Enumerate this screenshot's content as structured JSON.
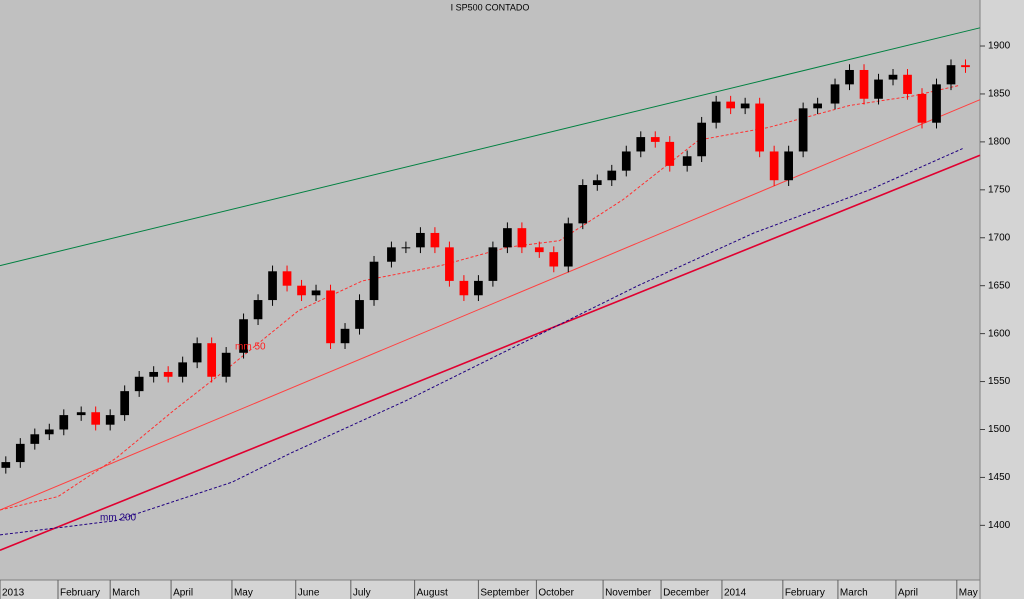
{
  "chart_data": {
    "type": "candlestick",
    "title": "I SP500 CONTADO",
    "x": [
      2,
      7,
      12,
      17,
      22,
      28,
      33,
      38,
      43,
      48,
      53,
      58,
      63,
      68,
      73,
      78,
      84,
      89,
      94,
      99,
      104,
      109,
      114,
      119,
      124,
      129,
      135,
      140,
      145,
      150,
      155,
      160,
      165,
      170,
      175,
      180,
      186,
      191,
      196,
      201,
      206,
      211,
      216,
      221,
      226,
      231,
      237,
      242,
      247,
      252,
      257,
      262,
      267,
      272,
      277,
      282,
      288,
      293,
      298,
      303,
      308,
      313,
      318,
      323,
      328,
      333
    ],
    "open": [
      1460,
      1466,
      1485,
      1495,
      1500,
      1515,
      1518,
      1505,
      1515,
      1540,
      1555,
      1560,
      1555,
      1570,
      1590,
      1555,
      1580,
      1615,
      1635,
      1665,
      1650,
      1640,
      1645,
      1590,
      1605,
      1635,
      1675,
      1690,
      1690,
      1705,
      1690,
      1655,
      1640,
      1655,
      1690,
      1710,
      1690,
      1685,
      1670,
      1715,
      1755,
      1760,
      1770,
      1790,
      1805,
      1800,
      1775,
      1785,
      1820,
      1842,
      1835,
      1840,
      1790,
      1760,
      1790,
      1835,
      1840,
      1860,
      1875,
      1845,
      1865,
      1870,
      1850,
      1820,
      1860,
      1880
    ],
    "high": [
      1472,
      1491,
      1501,
      1506,
      1521,
      1524,
      1524,
      1521,
      1546,
      1561,
      1566,
      1566,
      1576,
      1596,
      1596,
      1586,
      1621,
      1641,
      1671,
      1671,
      1656,
      1651,
      1651,
      1611,
      1641,
      1681,
      1696,
      1696,
      1711,
      1711,
      1696,
      1661,
      1661,
      1696,
      1716,
      1716,
      1696,
      1691,
      1721,
      1761,
      1766,
      1776,
      1796,
      1811,
      1811,
      1806,
      1791,
      1826,
      1848,
      1848,
      1846,
      1846,
      1796,
      1796,
      1841,
      1846,
      1866,
      1881,
      1881,
      1871,
      1876,
      1876,
      1856,
      1866,
      1886,
      1886
    ],
    "low": [
      1454,
      1460,
      1479,
      1489,
      1494,
      1509,
      1499,
      1499,
      1509,
      1534,
      1549,
      1549,
      1549,
      1564,
      1549,
      1549,
      1574,
      1609,
      1629,
      1644,
      1634,
      1634,
      1584,
      1584,
      1599,
      1629,
      1669,
      1684,
      1684,
      1684,
      1649,
      1634,
      1634,
      1649,
      1684,
      1684,
      1679,
      1664,
      1664,
      1709,
      1749,
      1754,
      1764,
      1784,
      1794,
      1769,
      1769,
      1779,
      1814,
      1829,
      1829,
      1784,
      1754,
      1754,
      1784,
      1829,
      1834,
      1854,
      1839,
      1839,
      1859,
      1844,
      1814,
      1814,
      1854,
      1872
    ],
    "close": [
      1466,
      1485,
      1495,
      1500,
      1515,
      1518,
      1505,
      1515,
      1540,
      1555,
      1560,
      1555,
      1570,
      1590,
      1555,
      1580,
      1615,
      1635,
      1665,
      1650,
      1640,
      1645,
      1590,
      1605,
      1635,
      1675,
      1690,
      1690,
      1705,
      1690,
      1655,
      1640,
      1655,
      1690,
      1710,
      1690,
      1685,
      1670,
      1715,
      1755,
      1760,
      1770,
      1790,
      1805,
      1800,
      1775,
      1785,
      1820,
      1842,
      1835,
      1840,
      1790,
      1760,
      1790,
      1835,
      1840,
      1860,
      1875,
      1845,
      1865,
      1870,
      1850,
      1820,
      1860,
      1880,
      1878
    ],
    "up_color": "#000000",
    "down_color": "#ff0000",
    "lines": [
      {
        "color": "#008040",
        "dash": false,
        "width": 1,
        "x": [
          0,
          338
        ],
        "values": [
          1671,
          1919
        ]
      },
      {
        "color": "#ff4040",
        "dash": false,
        "width": 1,
        "x": [
          0,
          338
        ],
        "values": [
          1416,
          1844
        ]
      },
      {
        "color": "#e00030",
        "dash": false,
        "width": 1.6,
        "x": [
          0,
          338
        ],
        "values": [
          1374,
          1786
        ]
      },
      {
        "color": "#ff3030",
        "dash": true,
        "width": 1,
        "x": [
          0,
          20,
          40,
          60,
          79,
          103,
          125,
          152,
          175,
          193,
          215,
          241,
          265,
          293,
          315,
          331
        ],
        "values": [
          1416,
          1430,
          1470,
          1520,
          1565,
          1624,
          1655,
          1671,
          1690,
          1697,
          1740,
          1802,
          1815,
          1838,
          1848,
          1859
        ]
      },
      {
        "color": "#200080",
        "dash": true,
        "width": 1,
        "x": [
          0,
          40,
          80,
          100,
          140,
          180,
          220,
          260,
          300,
          332
        ],
        "values": [
          1390,
          1405,
          1445,
          1475,
          1530,
          1590,
          1650,
          1705,
          1750,
          1793
        ]
      }
    ],
    "annotations": [
      {
        "text": "mm 50",
        "color": "#ff2020"
      },
      {
        "text": "mm 200",
        "color": "#200080"
      }
    ],
    "xlim": [
      0,
      338
    ],
    "ylim": [
      1343,
      1948
    ],
    "xticks": [
      {
        "value": 0,
        "label": "2013"
      },
      {
        "value": 20,
        "label": "February"
      },
      {
        "value": 38,
        "label": "March"
      },
      {
        "value": 59,
        "label": "April"
      },
      {
        "value": 80,
        "label": "May"
      },
      {
        "value": 102,
        "label": "June"
      },
      {
        "value": 121,
        "label": "July"
      },
      {
        "value": 143,
        "label": "August"
      },
      {
        "value": 165,
        "label": "September"
      },
      {
        "value": 185,
        "label": "October"
      },
      {
        "value": 208,
        "label": "November"
      },
      {
        "value": 228,
        "label": "December"
      },
      {
        "value": 249,
        "label": "2014"
      },
      {
        "value": 270,
        "label": "February"
      },
      {
        "value": 289,
        "label": "March"
      },
      {
        "value": 309,
        "label": "April"
      },
      {
        "value": 330,
        "label": "May"
      }
    ],
    "yticks": [
      1400,
      1450,
      1500,
      1550,
      1600,
      1650,
      1700,
      1750,
      1800,
      1850,
      1900
    ]
  }
}
